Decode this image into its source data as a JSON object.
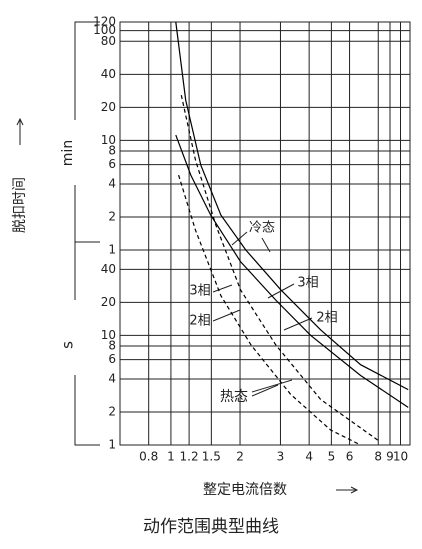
{
  "chart_data": {
    "type": "line",
    "title": "动作范围典型曲线",
    "x_label": "整定电流倍数",
    "y_label": "脱扣时间",
    "y_unit_labels": [
      "min",
      "s"
    ],
    "xscale": "log",
    "yscale": "log",
    "grid": true,
    "xlim": [
      0.6,
      11
    ],
    "xticks": [
      0.8,
      1,
      1.2,
      1.5,
      2,
      3,
      4,
      5,
      6,
      8,
      9,
      10
    ],
    "ylim": [
      1,
      7200
    ],
    "yticks": [
      {
        "value": 7200,
        "label": "120"
      },
      {
        "value": 6000,
        "label": "100"
      },
      {
        "value": 4800,
        "label": "80"
      },
      {
        "value": 2400,
        "label": "40"
      },
      {
        "value": 1200,
        "label": "20"
      },
      {
        "value": 600,
        "label": "10"
      },
      {
        "value": 480,
        "label": "8"
      },
      {
        "value": 360,
        "label": "6"
      },
      {
        "value": 240,
        "label": "4"
      },
      {
        "value": 120,
        "label": "2"
      },
      {
        "value": 60,
        "label": "1"
      },
      40,
      20,
      10,
      8,
      6,
      4,
      2,
      1
    ],
    "series": [
      {
        "color": "#000000",
        "dashed": false,
        "x": [
          1.05,
          1.16,
          1.35,
          1.65,
          2.12,
          3.01,
          4.49,
          6.7,
          10.8
        ],
        "values": [
          7200,
          1397,
          357,
          125,
          60,
          26,
          11.2,
          5.4,
          3.2
        ]
      },
      {
        "color": "#000000",
        "dashed": false,
        "x": [
          1.05,
          1.22,
          1.49,
          2.01,
          2.86,
          4.06,
          6.7,
          10.8
        ],
        "values": [
          670,
          289,
          125,
          47,
          21,
          10,
          4.3,
          2.2
        ]
      },
      {
        "color": "#000000",
        "dashed": true,
        "x": [
          1.11,
          1.28,
          1.57,
          2.01,
          2.86,
          4.49,
          8.0
        ],
        "values": [
          1550,
          396,
          101,
          26,
          8.2,
          2.6,
          1.1
        ]
      },
      {
        "color": "#000000",
        "dashed": true,
        "x": [
          1.08,
          1.28,
          1.65,
          2.23,
          3.32,
          4.96,
          6.7
        ],
        "values": [
          289,
          91,
          23,
          8.2,
          2.9,
          1.37,
          1
        ]
      }
    ],
    "annotations": [
      "冷态",
      "3相",
      "3相",
      "2相",
      "2相",
      "热态"
    ]
  }
}
